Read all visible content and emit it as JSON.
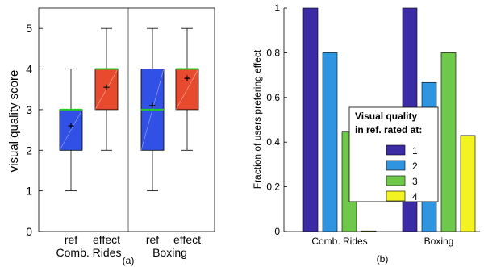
{
  "colors": {
    "ref_box": "#3050e6",
    "effect_box": "#e84a2e",
    "median": "#22cc22",
    "q1": "#3b2ca6",
    "q2": "#2f95e0",
    "q3": "#6ec84a",
    "q4": "#f3f321"
  },
  "chart_data": [
    {
      "type": "box",
      "caption": "(a)",
      "ylabel": "visual quality score",
      "ylim": [
        0,
        5.5
      ],
      "yticks": [
        "0",
        "1",
        "2",
        "3",
        "4",
        "5"
      ],
      "groups": [
        {
          "name": "Comb. Rides",
          "boxes": [
            {
              "label": "ref",
              "min": 1,
              "q1": 2,
              "median": 3,
              "q3": 3,
              "max": 4,
              "mean": 2.6
            },
            {
              "label": "effect",
              "min": 2,
              "q1": 3,
              "median": 4,
              "q3": 4,
              "max": 5,
              "mean": 3.55
            }
          ]
        },
        {
          "name": "Boxing",
          "boxes": [
            {
              "label": "ref",
              "min": 1,
              "q1": 2,
              "median": 3,
              "q3": 4,
              "max": 5,
              "mean": 3.1
            },
            {
              "label": "effect",
              "min": 2,
              "q1": 3,
              "median": 4,
              "q3": 4,
              "max": 5,
              "mean": 3.77
            }
          ]
        }
      ]
    },
    {
      "type": "bar",
      "caption": "(b)",
      "ylabel": "Fraction of users prefering effect",
      "ylim": [
        0,
        1
      ],
      "yticks": [
        "0",
        "0.2",
        "0.4",
        "0.6",
        "0.8",
        "1"
      ],
      "categories": [
        "Comb. Rides",
        "Boxing"
      ],
      "legend_title_line1": "Visual quality",
      "legend_title_line2": "in ref. rated at:",
      "series": [
        {
          "name": "1",
          "values": [
            1.0,
            1.0
          ]
        },
        {
          "name": "2",
          "values": [
            0.8,
            0.667
          ]
        },
        {
          "name": "3",
          "values": [
            0.445,
            0.8
          ]
        },
        {
          "name": "4",
          "values": [
            0.0,
            0.43
          ]
        }
      ]
    }
  ]
}
